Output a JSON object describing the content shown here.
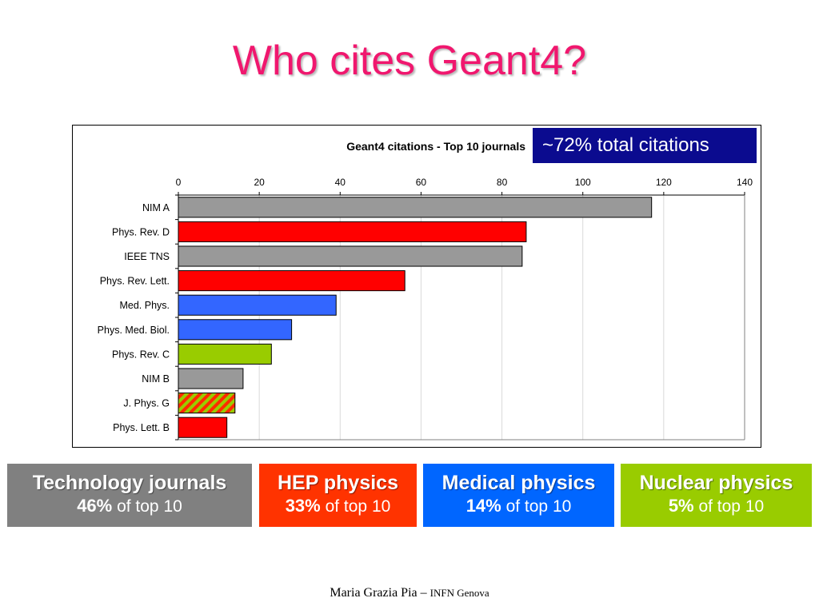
{
  "slide_title": "Who cites Geant4?",
  "callout": "~72% total citations",
  "chart_data": {
    "type": "bar",
    "orientation": "horizontal",
    "title": "Geant4 citations - Top 10 journals",
    "xlim": [
      0,
      140
    ],
    "xticks": [
      0,
      20,
      40,
      60,
      80,
      100,
      120,
      140
    ],
    "grid": true,
    "categories": [
      "NIM A",
      "Phys. Rev. D",
      "IEEE TNS",
      "Phys. Rev. Lett.",
      "Med. Phys.",
      "Phys. Med. Biol.",
      "Phys. Rev. C",
      "NIM B",
      "J. Phys. G",
      "Phys. Lett. B"
    ],
    "values": [
      117,
      86,
      85,
      56,
      39,
      28,
      23,
      16,
      14,
      12
    ],
    "bar_colors": [
      "#999999",
      "#ff0000",
      "#999999",
      "#ff0000",
      "#3366ff",
      "#3366ff",
      "#99cc00",
      "#999999",
      "hatched-red-green",
      "#ff0000"
    ]
  },
  "categories": [
    {
      "title": "Technology journals",
      "percent": "46%",
      "suffix": " of top 10",
      "color": "#808080"
    },
    {
      "title": "HEP physics",
      "percent": "33%",
      "suffix": " of top 10",
      "color": "#ff3300"
    },
    {
      "title": "Medical physics",
      "percent": "14%",
      "suffix": " of top 10",
      "color": "#0066ff"
    },
    {
      "title": "Nuclear physics",
      "percent": "5%",
      "suffix": " of top 10",
      "color": "#99cc00"
    }
  ],
  "footer": {
    "author": "Maria Grazia Pia",
    "separator": " – ",
    "affiliation": "INFN Genova"
  }
}
